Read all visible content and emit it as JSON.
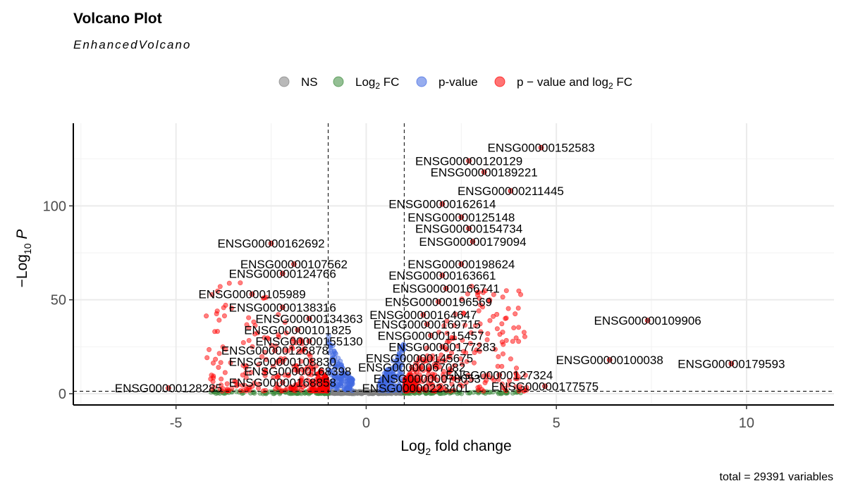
{
  "chart_data": {
    "type": "scatter",
    "title": "Volcano Plot",
    "subtitle": "EnhancedVolcano",
    "xlabel": "Log2 fold change",
    "ylabel": "-Log10 P",
    "caption": "total = 29391 variables",
    "xlim": [
      -7.7,
      12.3
    ],
    "ylim": [
      -6,
      144
    ],
    "x_ticks": [
      -5,
      0,
      5,
      10
    ],
    "y_ticks": [
      0,
      50,
      100
    ],
    "fc_cutoff": 1,
    "p_cutoff_neglog10": 1.3,
    "grid": true,
    "legend_position": "top",
    "legend": [
      {
        "key": "ns",
        "label": "NS",
        "color": "#808080"
      },
      {
        "key": "fc",
        "label": "Log2 FC",
        "color": "#3d8b3d"
      },
      {
        "key": "p",
        "label": "p-value",
        "color": "#4169e1"
      },
      {
        "key": "both",
        "label": "p - value and log2 FC",
        "color": "#ff0000"
      }
    ],
    "labeled_genes": [
      {
        "label": "ENSG00000152583",
        "x": 4.6,
        "y": 131
      },
      {
        "label": "ENSG00000120129",
        "x": 2.7,
        "y": 124
      },
      {
        "label": "ENSG00000189221",
        "x": 3.1,
        "y": 118
      },
      {
        "label": "ENSG00000211445",
        "x": 3.8,
        "y": 108
      },
      {
        "label": "ENSG00000162614",
        "x": 2.0,
        "y": 101
      },
      {
        "label": "ENSG00000125148",
        "x": 2.5,
        "y": 94
      },
      {
        "label": "ENSG00000154734",
        "x": 2.7,
        "y": 88
      },
      {
        "label": "ENSG00000179094",
        "x": 2.8,
        "y": 81
      },
      {
        "label": "ENSG00000162692",
        "x": -2.5,
        "y": 80
      },
      {
        "label": "ENSG00000198624",
        "x": 2.5,
        "y": 69
      },
      {
        "label": "ENSG00000107562",
        "x": -1.9,
        "y": 69
      },
      {
        "label": "ENSG00000124766",
        "x": -2.2,
        "y": 64
      },
      {
        "label": "ENSG00000163661",
        "x": 2.0,
        "y": 63
      },
      {
        "label": "ENSG00000166741",
        "x": 2.1,
        "y": 56
      },
      {
        "label": "ENSG00000105989",
        "x": -3.0,
        "y": 53
      },
      {
        "label": "ENSG00000196569",
        "x": 1.9,
        "y": 49
      },
      {
        "label": "ENSG00000138316",
        "x": -2.2,
        "y": 46
      },
      {
        "label": "ENSG00000164647",
        "x": 1.5,
        "y": 42
      },
      {
        "label": "ENSG00000109906",
        "x": 7.4,
        "y": 39
      },
      {
        "label": "ENSG00000134363",
        "x": -1.5,
        "y": 40
      },
      {
        "label": "ENSG00000169715",
        "x": 1.6,
        "y": 37
      },
      {
        "label": "ENSG00000101825",
        "x": -1.8,
        "y": 34
      },
      {
        "label": "ENSG00000115457",
        "x": 1.7,
        "y": 31
      },
      {
        "label": "ENSG00000155130",
        "x": -1.5,
        "y": 28
      },
      {
        "label": "ENSG00000177283",
        "x": 2.0,
        "y": 25
      },
      {
        "label": "ENSG00000126878",
        "x": -2.4,
        "y": 23
      },
      {
        "label": "ENSG00000145675",
        "x": 1.4,
        "y": 19
      },
      {
        "label": "ENSG00000100038",
        "x": 6.4,
        "y": 18
      },
      {
        "label": "ENSG00000179593",
        "x": 9.6,
        "y": 16
      },
      {
        "label": "ENSG00000108830",
        "x": -2.2,
        "y": 17
      },
      {
        "label": "ENSG00000067082",
        "x": 1.2,
        "y": 14
      },
      {
        "label": "ENSG00000168398",
        "x": -1.8,
        "y": 12
      },
      {
        "label": "ENSG00000127324",
        "x": 3.5,
        "y": 10
      },
      {
        "label": "ENSG00000078053",
        "x": 1.6,
        "y": 8
      },
      {
        "label": "ENSG00000168858",
        "x": -2.2,
        "y": 6
      },
      {
        "label": "ENSG00000128285",
        "x": -5.2,
        "y": 3
      },
      {
        "label": "ENSG00000223401",
        "x": 1.3,
        "y": 3
      },
      {
        "label": "ENSG00000177575",
        "x": 4.7,
        "y": 4
      }
    ]
  }
}
